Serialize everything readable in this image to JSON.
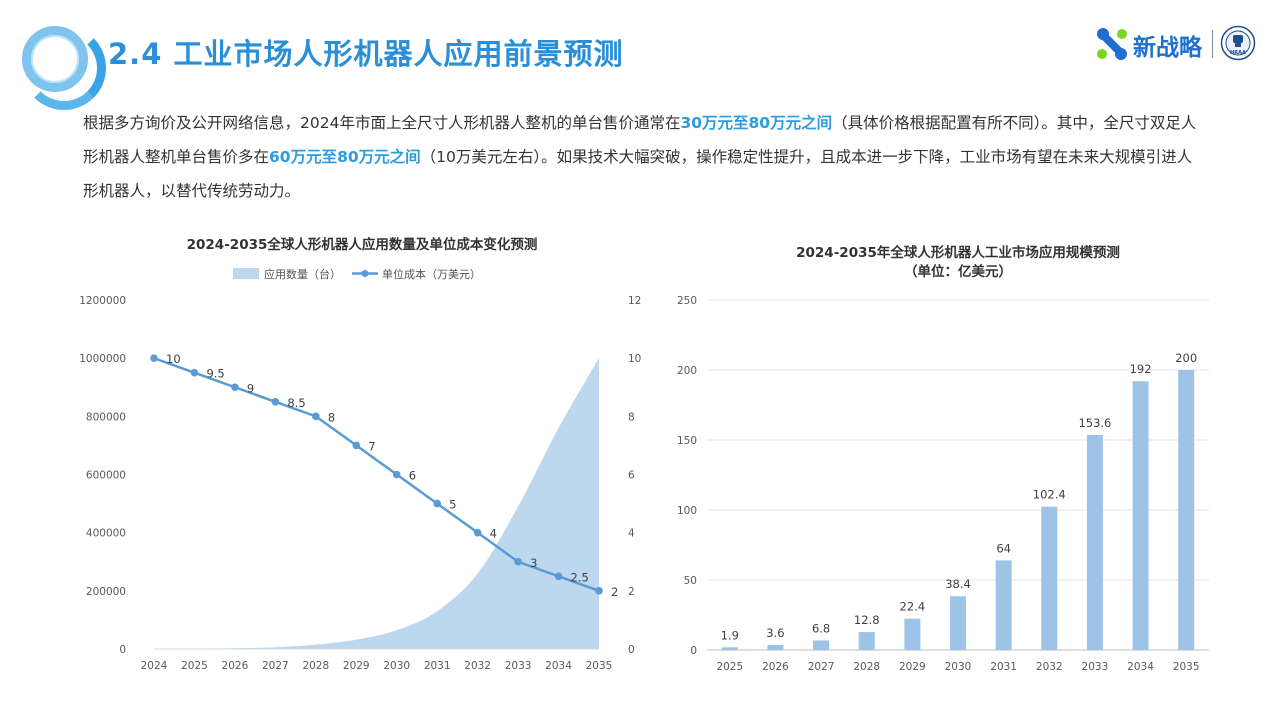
{
  "header": {
    "title": "2.4 工业市场人形机器人应用前景预测",
    "logo_text": "新战略",
    "seal_text": "HRAA"
  },
  "intro": {
    "p1": "根据多方询价及公开网络信息，2024年市面上全尺寸人形机器人整机的单台售价通常在",
    "h1": "30万元至80万元之间",
    "p2": "（具体价格根据配置有所不同）。其中，全尺寸双足人形机器人整机单台售价多在",
    "h2": "60万元至80万元之间",
    "p3": "（10万美元左右）。如果技术大幅突破，操作稳定性提升，且成本进一步下降，工业市场有望在未来大规模引进人形机器人，以替代传统劳动力。"
  },
  "colors": {
    "title": "#2a8fd6",
    "highlight": "#2d9be0",
    "area": "#bdd7ee",
    "line": "#5b9bd5",
    "bar": "#9dc3e6"
  },
  "chart_data": [
    {
      "type": "area",
      "title": "2024-2035全球人形机器人应用数量及单位成本变化预测",
      "legend_position": "top",
      "categories": [
        "2024",
        "2025",
        "2026",
        "2027",
        "2028",
        "2029",
        "2030",
        "2031",
        "2032",
        "2033",
        "2034",
        "2035"
      ],
      "series": [
        {
          "name": "应用数量（台）",
          "type": "area",
          "axis": "left",
          "values": [
            100,
            700,
            2500,
            6000,
            15000,
            32000,
            65000,
            130000,
            260000,
            490000,
            760000,
            1000000
          ]
        },
        {
          "name": "单位成本（万美元）",
          "type": "line",
          "axis": "right",
          "values": [
            10,
            9.5,
            9,
            8.5,
            8,
            7,
            6,
            5,
            4,
            3,
            2.5,
            2
          ],
          "labels": [
            "10",
            "9.5",
            "9",
            "8.5",
            "8",
            "7",
            "6",
            "5",
            "4",
            "3",
            "2.5",
            "2"
          ]
        }
      ],
      "y_left": {
        "min": 0,
        "max": 1200000,
        "ticks": [
          "0",
          "200000",
          "400000",
          "600000",
          "800000",
          "1000000",
          "1200000"
        ]
      },
      "y_right": {
        "min": 0,
        "max": 12,
        "ticks": [
          "0",
          "2",
          "4",
          "6",
          "8",
          "10",
          "12"
        ]
      },
      "grid": false
    },
    {
      "type": "bar",
      "title": "2024-2035年全球人形机器人工业市场应用规模预测",
      "subtitle": "（单位：亿美元）",
      "categories": [
        "2025",
        "2026",
        "2027",
        "2028",
        "2029",
        "2030",
        "2031",
        "2032",
        "2033",
        "2034",
        "2035"
      ],
      "values": [
        1.9,
        3.6,
        6.8,
        12.8,
        22.4,
        38.4,
        64,
        102.4,
        153.6,
        192,
        200
      ],
      "labels": [
        "1.9",
        "3.6",
        "6.8",
        "12.8",
        "22.4",
        "38.4",
        "64",
        "102.4",
        "153.6",
        "192",
        "200"
      ],
      "ylim": [
        0,
        250
      ],
      "y_ticks": [
        "0",
        "50",
        "100",
        "150",
        "200",
        "250"
      ],
      "grid": true
    }
  ]
}
